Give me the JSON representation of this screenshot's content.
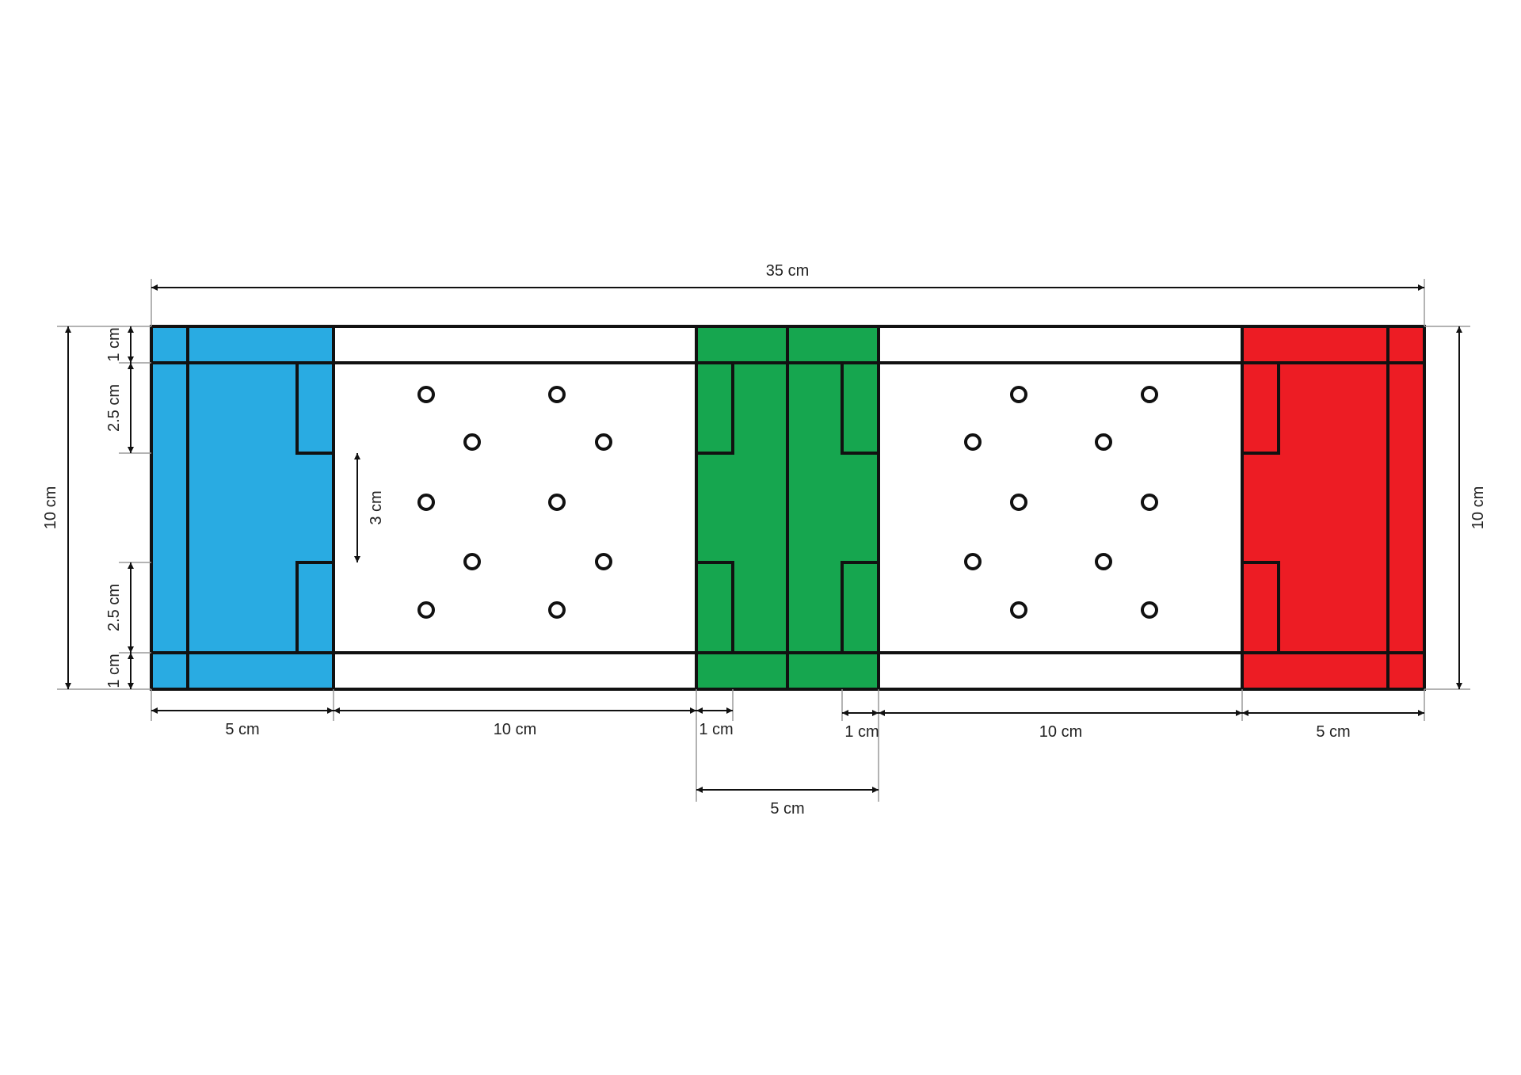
{
  "colors": {
    "left_panel": "#29abe2",
    "center_panel": "#16a64f",
    "right_panel": "#ed1c24",
    "outline": "#111111",
    "background": "#ffffff"
  },
  "dimensions": {
    "total_width": "35 cm",
    "height_left": "10 cm",
    "height_right": "10 cm",
    "top_margin": "1 cm",
    "upper_tab": "2.5 cm",
    "lower_tab": "2.5 cm",
    "bottom_margin": "1 cm",
    "tab_gap": "3 cm",
    "left_end_width": "5 cm",
    "left_middle_width": "10 cm",
    "center_left_tab": "1 cm",
    "center_right_tab": "1 cm",
    "right_middle_width": "10 cm",
    "right_end_width": "5 cm",
    "center_width": "5 cm"
  }
}
